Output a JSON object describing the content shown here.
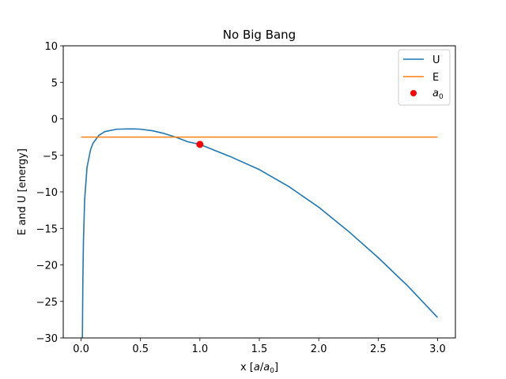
{
  "chart_data": {
    "type": "line",
    "title": "No Big Bang",
    "xlabel_main": "x [",
    "xlabel_a": "a",
    "xlabel_slash": "/",
    "xlabel_a0": "a",
    "xlabel_sub": "0",
    "xlabel_end": "]",
    "ylabel": "E and U [energy]",
    "xlim": [
      -0.15,
      3.15
    ],
    "ylim": [
      -30,
      10
    ],
    "xticks": [
      0.0,
      0.5,
      1.0,
      1.5,
      2.0,
      2.5,
      3.0
    ],
    "xtick_labels": [
      "0.0",
      "0.5",
      "1.0",
      "1.5",
      "2.0",
      "2.5",
      "3.0"
    ],
    "yticks": [
      10,
      5,
      0,
      -5,
      -10,
      -15,
      -20,
      -25,
      -30
    ],
    "ytick_labels": [
      "10",
      "5",
      "0",
      "−5",
      "−10",
      "−15",
      "−20",
      "−25",
      "−30"
    ],
    "grid": false,
    "legend_position": "top-right",
    "series": [
      {
        "name": "U",
        "kind": "line",
        "color": "#1f77b4",
        "x": [
          0.011,
          0.015,
          0.02,
          0.03,
          0.05,
          0.08,
          0.1,
          0.15,
          0.2,
          0.3,
          0.4,
          0.45,
          0.5,
          0.6,
          0.7,
          0.8,
          0.9,
          1.0,
          1.25,
          1.5,
          1.75,
          2.0,
          2.25,
          2.5,
          2.75,
          3.0
        ],
        "y": [
          -30,
          -22.2,
          -16.7,
          -11.1,
          -6.66,
          -4.2,
          -3.35,
          -2.26,
          -1.75,
          -1.42,
          -1.38,
          -1.39,
          -1.42,
          -1.63,
          -2.01,
          -2.53,
          -3.15,
          -3.5,
          -5.13,
          -6.95,
          -9.29,
          -12.1,
          -15.4,
          -19.0,
          -22.9,
          -27.2
        ]
      },
      {
        "name": "E",
        "kind": "line",
        "color": "#ff7f0e",
        "x": [
          0.0,
          3.0
        ],
        "y": [
          -2.5,
          -2.5
        ]
      },
      {
        "name": "a",
        "name_sub": "0",
        "kind": "point",
        "color": "#ff0000",
        "x": [
          1.0
        ],
        "y": [
          -3.5
        ]
      }
    ]
  }
}
